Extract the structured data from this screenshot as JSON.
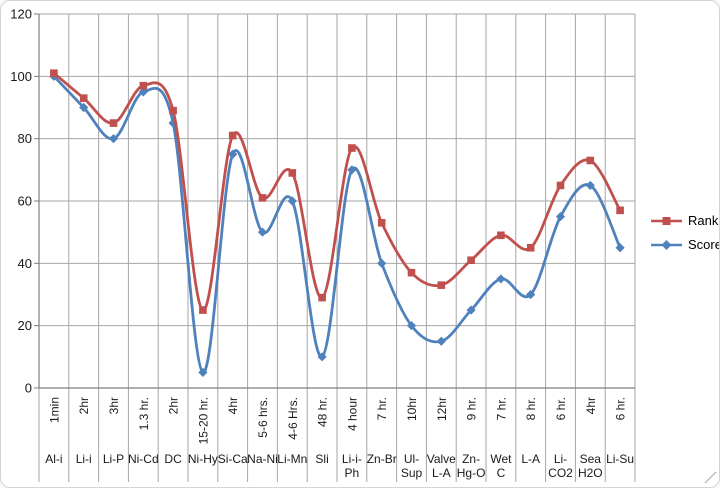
{
  "chart_data": {
    "type": "line",
    "title": "",
    "smooth": true,
    "legend_position": "right",
    "grid": true,
    "y_axis": {
      "min": 0,
      "max": 120,
      "step": 20,
      "ticks": [
        0,
        20,
        40,
        60,
        80,
        100,
        120
      ]
    },
    "categories": [
      {
        "time": "1min",
        "name": "Al-i",
        "name_lines": [
          "Al-i"
        ]
      },
      {
        "time": "2hr",
        "name": "Li-i",
        "name_lines": [
          "Li-i"
        ]
      },
      {
        "time": "3hr",
        "name": "Li-P",
        "name_lines": [
          "Li-P"
        ]
      },
      {
        "time": "1.3 hr.",
        "name": "Ni-Cd",
        "name_lines": [
          "Ni-Cd"
        ]
      },
      {
        "time": "2hr",
        "name": "DC",
        "name_lines": [
          "DC"
        ]
      },
      {
        "time": "15-20 hr.",
        "name": "Ni-Hy",
        "name_lines": [
          "Ni-Hy"
        ]
      },
      {
        "time": "4hr",
        "name": "Si-Ca",
        "name_lines": [
          "Si-Ca"
        ]
      },
      {
        "time": "5-6 hrs.",
        "name": "Na-Ni",
        "name_lines": [
          "Na-Ni"
        ]
      },
      {
        "time": "4-6 Hrs.",
        "name": "Li-Mn",
        "name_lines": [
          "Li-Mn"
        ]
      },
      {
        "time": "48 hr.",
        "name": "Sli",
        "name_lines": [
          "Sli"
        ]
      },
      {
        "time": "4 hour",
        "name": "Li-i-Ph",
        "name_lines": [
          "Li-i-",
          "Ph"
        ]
      },
      {
        "time": "7 hr.",
        "name": "Zn-Br",
        "name_lines": [
          "Zn-Br"
        ]
      },
      {
        "time": "10hr",
        "name": "Ul-Sup",
        "name_lines": [
          "Ul-",
          "Sup"
        ]
      },
      {
        "time": "12hr",
        "name": "Valve L-A",
        "name_lines": [
          "Valve",
          "L-A"
        ]
      },
      {
        "time": "9 hr.",
        "name": "Zn-Hg-O",
        "name_lines": [
          "Zn-",
          "Hg-O"
        ]
      },
      {
        "time": "7 hr.",
        "name": "Wet C",
        "name_lines": [
          "Wet",
          "C"
        ]
      },
      {
        "time": "8 hr.",
        "name": "L-A",
        "name_lines": [
          "L-A"
        ]
      },
      {
        "time": "6 hr.",
        "name": "Li-CO2",
        "name_lines": [
          "Li-",
          "CO2"
        ]
      },
      {
        "time": "4hr",
        "name": "Sea H2O",
        "name_lines": [
          "Sea",
          "H2O"
        ]
      },
      {
        "time": "6 hr.",
        "name": "Li-Su",
        "name_lines": [
          "Li-Su"
        ]
      }
    ],
    "series": [
      {
        "name": "Rank",
        "color": "#C0504D",
        "marker": "square",
        "values": [
          101,
          93,
          85,
          97,
          89,
          25,
          81,
          61,
          69,
          29,
          77,
          53,
          37,
          33,
          41,
          49,
          45,
          65,
          73,
          57
        ]
      },
      {
        "name": "Score",
        "color": "#4F81BD",
        "marker": "diamond",
        "values": [
          100,
          90,
          80,
          95,
          85,
          5,
          75,
          50,
          60,
          10,
          70,
          40,
          20,
          15,
          25,
          35,
          30,
          55,
          65,
          45
        ]
      }
    ],
    "colors": {
      "gridline": "#a6a6a6",
      "axis": "#7f7f7f",
      "text": "#1a1a1a",
      "frame_border": "#d4d4d4",
      "background": "#ffffff"
    }
  }
}
